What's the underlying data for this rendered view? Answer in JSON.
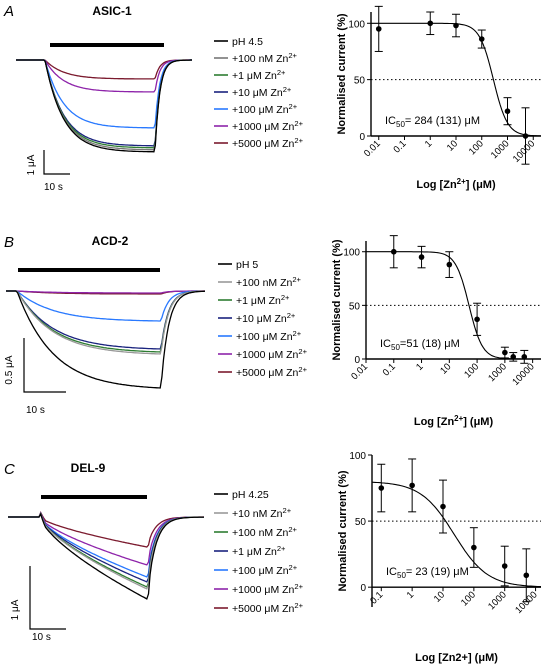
{
  "figure": {
    "panels": [
      {
        "letter": "A",
        "title": "ASIC-1",
        "scale_y": "1 μA",
        "scale_x": "10 s",
        "legend": [
          {
            "base": "pH 4.5",
            "sup": "",
            "color": "#000000"
          },
          {
            "base": "+100 nM Zn",
            "sup": "2+",
            "color": "#777777"
          },
          {
            "base": "+1 μM Zn",
            "sup": "2+",
            "color": "#2e7d32"
          },
          {
            "base": "+10 μM Zn",
            "sup": "2+",
            "color": "#1a237e"
          },
          {
            "base": "+100 μM Zn",
            "sup": "2+",
            "color": "#2979ff"
          },
          {
            "base": "+1000 μM Zn",
            "sup": "2+",
            "color": "#8e24aa"
          },
          {
            "base": "+5000 μM Zn",
            "sup": "2+",
            "color": "#7b1a2e"
          }
        ],
        "dose_ylabel": "Normalised current (%)",
        "dose_xlabel_pre": "Log [Zn",
        "dose_xlabel_sup": "2+",
        "dose_xlabel_post": "] (μM)",
        "ic50_main": "IC",
        "ic50_sub": "50",
        "ic50_value": "= 284 (131) μM"
      },
      {
        "letter": "B",
        "title": "ACD-2",
        "scale_y": "0.5 μA",
        "scale_x": "10 s",
        "legend": [
          {
            "base": "pH 5",
            "sup": "",
            "color": "#000000"
          },
          {
            "base": "+100 nM Zn",
            "sup": "2+",
            "color": "#999999"
          },
          {
            "base": "+1 μM Zn",
            "sup": "2+",
            "color": "#2e7d32"
          },
          {
            "base": "+10 μM Zn",
            "sup": "2+",
            "color": "#1a237e"
          },
          {
            "base": "+100 μM Zn",
            "sup": "2+",
            "color": "#2979ff"
          },
          {
            "base": "+1000 μM Zn",
            "sup": "2+",
            "color": "#8e24aa"
          },
          {
            "base": "+5000 μM  Zn",
            "sup": "2+",
            "color": "#7b1a2e"
          }
        ],
        "dose_ylabel": "Normalised current (%)",
        "dose_xlabel_pre": "Log [Zn",
        "dose_xlabel_sup": "2+",
        "dose_xlabel_post": "] (μM)",
        "ic50_main": "IC",
        "ic50_sub": "50",
        "ic50_value": "=51 (18) μM"
      },
      {
        "letter": "C",
        "title": "DEL-9",
        "scale_y": "1 μA",
        "scale_x": "10 s",
        "legend": [
          {
            "base": "pH 4.25",
            "sup": "",
            "color": "#000000"
          },
          {
            "base": "+10 nM Zn",
            "sup": "2+",
            "color": "#999999"
          },
          {
            "base": "+100 nM Zn",
            "sup": "2+",
            "color": "#2e7d32"
          },
          {
            "base": "+1 μM Zn",
            "sup": "2+",
            "color": "#1a237e"
          },
          {
            "base": "+100 μM Zn",
            "sup": "2+",
            "color": "#2979ff"
          },
          {
            "base": "+1000 μM Zn",
            "sup": "2+",
            "color": "#8e24aa"
          },
          {
            "base": "+5000 μM Zn",
            "sup": "2+",
            "color": "#7b1a2e"
          }
        ],
        "dose_ylabel": "Normalised current (%)",
        "dose_xlabel_pre": "Log [Zn2+] (μM)",
        "dose_xlabel_sup": "",
        "dose_xlabel_post": "",
        "ic50_main": "IC",
        "ic50_sub": "50",
        "ic50_value": "= 23 (19) μM"
      }
    ]
  },
  "chart_data": [
    {
      "type": "scatter",
      "panel": "A",
      "xlabel": "Log [Zn2+] (μM)",
      "ylabel": "Normalised current (%)",
      "xscale": "log",
      "xlim": [
        0.005,
        20000
      ],
      "ylim": [
        0,
        110
      ],
      "x_ticks": [
        "0.01",
        "0.1",
        "1",
        "10",
        "100",
        "1000",
        "10000"
      ],
      "y_ticks": [
        "0",
        "50",
        "100"
      ],
      "reference_line": 50,
      "points": [
        {
          "x": 0.01,
          "y": 95,
          "err": 20
        },
        {
          "x": 1,
          "y": 100,
          "err": 10
        },
        {
          "x": 10,
          "y": 98,
          "err": 10
        },
        {
          "x": 100,
          "y": 86,
          "err": 8
        },
        {
          "x": 1000,
          "y": 22,
          "err": 12
        },
        {
          "x": 5000,
          "y": 0,
          "err": 25
        }
      ],
      "fit": {
        "top": 100,
        "bottom": 0,
        "ic50": 284,
        "hill": 1.6
      }
    },
    {
      "type": "scatter",
      "panel": "B",
      "xlabel": "Log [Zn2+] (μM)",
      "ylabel": "Normalised current (%)",
      "xscale": "log",
      "xlim": [
        0.01,
        20000
      ],
      "ylim": [
        0,
        110
      ],
      "x_ticks": [
        "0.01",
        "0.1",
        "1",
        "10",
        "100",
        "1000",
        "10000"
      ],
      "y_ticks": [
        "0",
        "50",
        "100"
      ],
      "reference_line": 50,
      "points": [
        {
          "x": 0.1,
          "y": 100,
          "err": 15
        },
        {
          "x": 1,
          "y": 95,
          "err": 10
        },
        {
          "x": 10,
          "y": 88,
          "err": 12
        },
        {
          "x": 100,
          "y": 37,
          "err": 15
        },
        {
          "x": 1000,
          "y": 6,
          "err": 5
        },
        {
          "x": 2000,
          "y": 2,
          "err": 4
        },
        {
          "x": 5000,
          "y": 2,
          "err": 6
        }
      ],
      "fit": {
        "top": 100,
        "bottom": 0,
        "ic50": 51,
        "hill": 1.8
      }
    },
    {
      "type": "scatter",
      "panel": "C",
      "xlabel": "Log [Zn2+] (μM)",
      "ylabel": "Normalised current (%)",
      "xscale": "log",
      "xlim": [
        0.05,
        15000
      ],
      "ylim": [
        -15,
        100
      ],
      "x_ticks": [
        "0.1",
        "1",
        "10",
        "100",
        "1000",
        "10000"
      ],
      "y_ticks": [
        "0",
        "50",
        "100"
      ],
      "reference_line": 50,
      "points": [
        {
          "x": 0.1,
          "y": 75,
          "err": 18
        },
        {
          "x": 1,
          "y": 77,
          "err": 20
        },
        {
          "x": 10,
          "y": 61,
          "err": 20
        },
        {
          "x": 100,
          "y": 30,
          "err": 15
        },
        {
          "x": 1000,
          "y": 16,
          "err": 15
        },
        {
          "x": 5000,
          "y": 9,
          "err": 20
        }
      ],
      "fit": {
        "top": 80,
        "bottom": 0,
        "ic50": 23,
        "hill": 0.8
      }
    }
  ]
}
